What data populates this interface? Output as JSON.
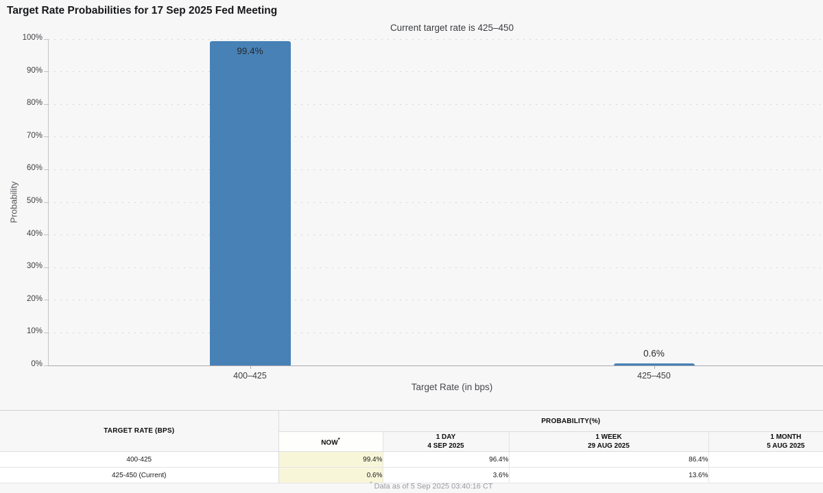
{
  "title": "Target Rate Probabilities for 17 Sep 2025 Fed Meeting",
  "subtitle": "Current target rate is 425–450",
  "chart_data": {
    "type": "bar",
    "title": "Target Rate Probabilities for 17 Sep 2025 Fed Meeting",
    "subtitle": "Current target rate is 425–450",
    "categories": [
      "400–425",
      "425–450"
    ],
    "values": [
      99.4,
      0.6
    ],
    "value_labels": [
      "99.4%",
      "0.6%"
    ],
    "xlabel": "Target Rate (in bps)",
    "ylabel": "Probability",
    "ylim": [
      0,
      100
    ],
    "ytick_step": 10,
    "ytick_suffix": "%",
    "grid": "horizontal-dotted",
    "legend": "none",
    "bar_color": "#4781b6"
  },
  "colors": {
    "bar": "#4781b6",
    "now_highlight": "#f8f6d8",
    "background": "#f7f7f8"
  },
  "table": {
    "col0_header": "TARGET RATE (BPS)",
    "group_header": "PROBABILITY(%)",
    "columns": [
      {
        "label": "NOW",
        "sup": "*",
        "sub": ""
      },
      {
        "label": "1 DAY",
        "sup": "",
        "sub": "4 SEP 2025"
      },
      {
        "label": "1 WEEK",
        "sup": "",
        "sub": "29 AUG 2025"
      },
      {
        "label": "1 MONTH",
        "sup": "",
        "sub": "5 AUG 2025"
      }
    ],
    "rows": [
      {
        "rate": "400-425",
        "values": [
          "99.4%",
          "96.4%",
          "86.4%",
          ""
        ]
      },
      {
        "rate": "425-450 (Current)",
        "values": [
          "0.6%",
          "3.6%",
          "13.6%",
          ""
        ]
      }
    ],
    "footnote_sup": "*",
    "footnote_text": "Data as of 5 Sep 2025 03:40:16 CT"
  }
}
